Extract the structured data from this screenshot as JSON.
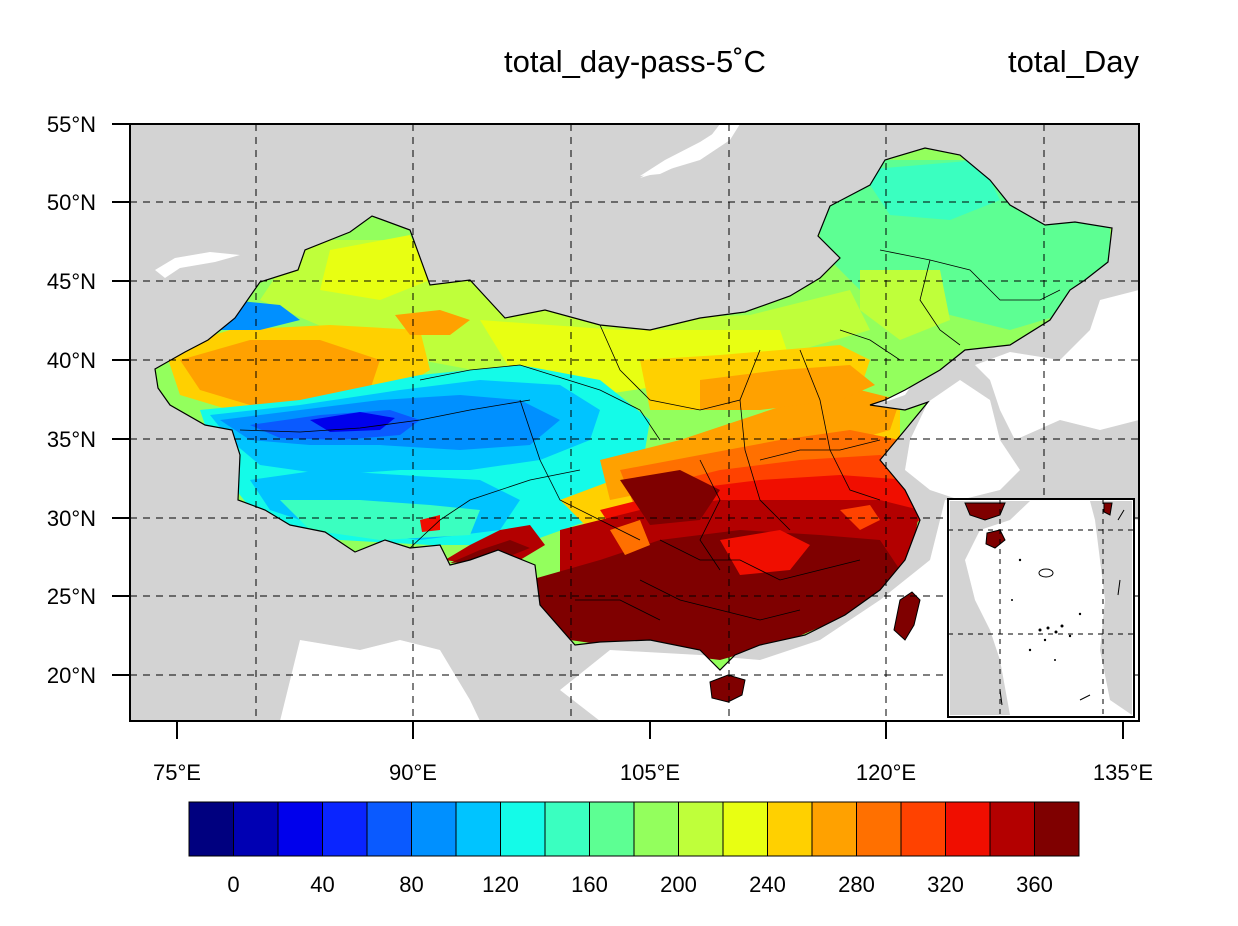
{
  "titles": {
    "center": "total_day-pass-5˚C",
    "right": "total_Day"
  },
  "map": {
    "lat_labels": [
      "55°N",
      "50°N",
      "45°N",
      "40°N",
      "35°N",
      "30°N",
      "25°N",
      "20°N"
    ],
    "lon_labels": [
      "75°E",
      "90°E",
      "105°E",
      "120°E",
      "135°E"
    ],
    "land_color": "#d3d3d3",
    "water_color": "#ffffff",
    "gridlines": "dashed",
    "inset": "South China Sea",
    "land_color_note": "inset-map"
  },
  "colorbar": {
    "tick_labels": [
      "0",
      "40",
      "80",
      "120",
      "160",
      "200",
      "240",
      "280",
      "320",
      "360"
    ],
    "colors": [
      "#00007f",
      "#0000b3",
      "#0000ec",
      "#0a25ff",
      "#0a5aff",
      "#0090ff",
      "#00c4ff",
      "#14fbe8",
      "#3affc0",
      "#5dff93",
      "#93ff5d",
      "#bfff3a",
      "#e8ff12",
      "#ffd000",
      "#ffa100",
      "#ff7000",
      "#ff4200",
      "#f00e00",
      "#b30000",
      "#7f0000"
    ]
  }
}
